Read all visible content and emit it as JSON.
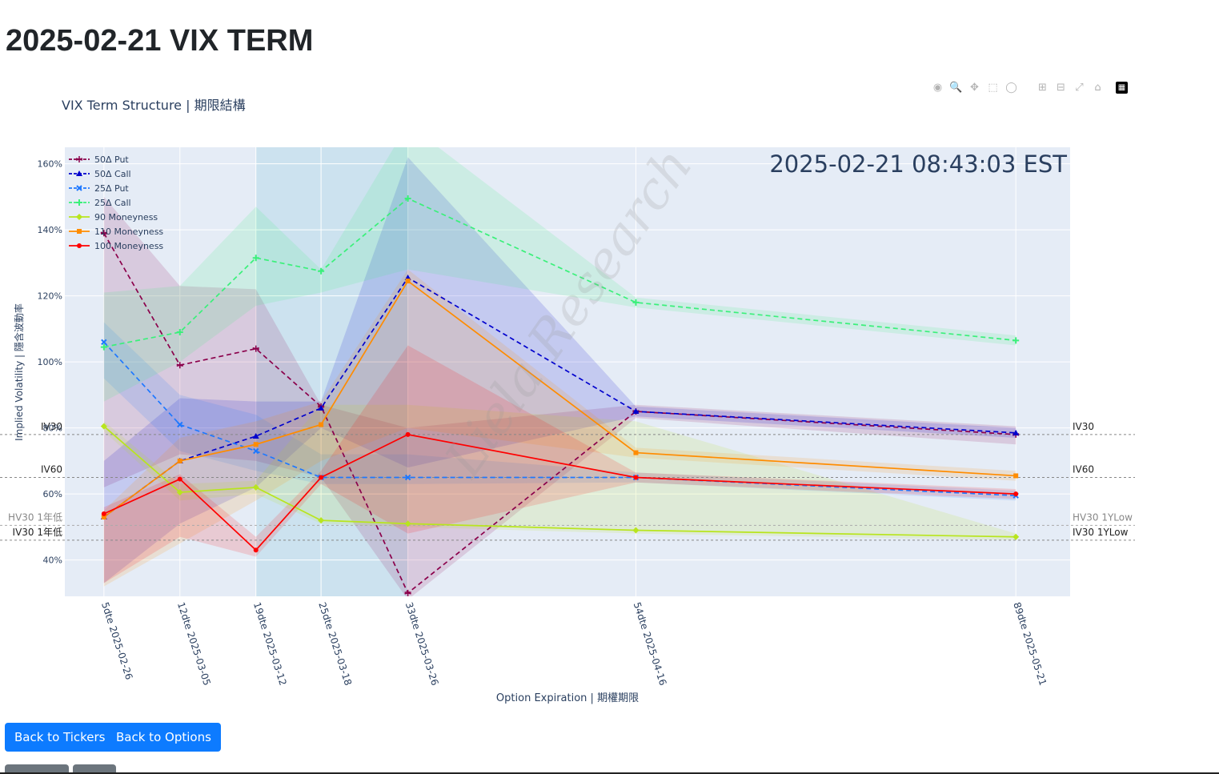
{
  "page": {
    "title": "2025-02-21 VIX TERM",
    "buttons": {
      "back_tickers": "Back to Tickers",
      "back_options": "Back to Options"
    }
  },
  "modebar": {
    "icons": [
      "camera-icon",
      "zoom-icon",
      "pan-icon",
      "box-select-icon",
      "lasso-icon",
      "zoom-in-icon",
      "zoom-out-icon",
      "autoscale-icon",
      "reset-axes-icon",
      "plotly-logo-icon"
    ]
  },
  "chart_data": {
    "type": "line",
    "title": "VIX Term Structure | 期限結構",
    "timestamp": "2025-02-21 08:43:03 EST",
    "xlabel": "Option Expiration | 期權期限",
    "ylabel": "Implied Volatility | 隱含波動率",
    "watermark": "Liela Research",
    "x_dte": [
      5,
      12,
      19,
      25,
      33,
      54,
      89
    ],
    "categories": [
      "5dte 2025-02-26",
      "12dte 2025-03-05",
      "19dte 2025-03-12",
      "25dte 2025-03-18",
      "33dte 2025-03-26",
      "54dte 2025-04-16",
      "89dte 2025-05-21"
    ],
    "ylim": [
      29,
      165
    ],
    "yticks": [
      40,
      60,
      80,
      100,
      120,
      140,
      160
    ],
    "ytick_labels": [
      "40%",
      "60%",
      "80%",
      "100%",
      "120%",
      "140%",
      "160%"
    ],
    "legend_position": "top-left",
    "grid": true,
    "series": [
      {
        "name": "50Δ Put",
        "color": "#8b004b",
        "dash": "6,4",
        "marker": "star",
        "values": [
          139,
          99,
          104,
          86.5,
          30,
          85,
          78
        ],
        "band": {
          "upper": [
            150,
            123,
            122,
            87,
            80,
            87,
            80.5
          ],
          "lower": [
            62,
            72,
            70,
            65,
            28,
            83,
            75
          ]
        }
      },
      {
        "name": "50Δ Call",
        "color": "#0000cd",
        "dash": "6,4",
        "marker": "triangle",
        "values": [
          53,
          70,
          77.5,
          86,
          125.5,
          85,
          78.5
        ],
        "band": {
          "upper": [
            70,
            89,
            88,
            88,
            162,
            86.5,
            80
          ],
          "lower": [
            33,
            51,
            62,
            80,
            68,
            83.5,
            77
          ]
        }
      },
      {
        "name": "25Δ Put",
        "color": "#1e78ff",
        "dash": "6,4",
        "marker": "x",
        "values": [
          106,
          81,
          73,
          65,
          65,
          65,
          59.5
        ],
        "band": {
          "upper": [
            112,
            90,
            84,
            72,
            72,
            66.5,
            61
          ],
          "lower": [
            95,
            73,
            67,
            63,
            63,
            63.5,
            58
          ]
        }
      },
      {
        "name": "25Δ Call",
        "color": "#3af07a",
        "dash": "6,4",
        "marker": "cross",
        "values": [
          104.5,
          109,
          131.5,
          127.5,
          149.5,
          118,
          106.5
        ],
        "band": {
          "upper": [
            121,
            123,
            147,
            128,
            172,
            119.5,
            108
          ],
          "lower": [
            88,
            100,
            117,
            121,
            128,
            116.5,
            105
          ]
        }
      },
      {
        "name": "90 Moneyness",
        "color": "#b8e51e",
        "dash": "",
        "marker": "diamond",
        "values": [
          80.5,
          60.5,
          62,
          52,
          51,
          49,
          47
        ],
        "band": {
          "upper": [
            82,
            63,
            64,
            87,
            87,
            82,
            48
          ],
          "lower": [
            79,
            58,
            60,
            51,
            50,
            48,
            46
          ]
        }
      },
      {
        "name": "110 Moneyness",
        "color": "#ff8c00",
        "dash": "",
        "marker": "square",
        "values": [
          53,
          70,
          75,
          81,
          124.5,
          72.5,
          65.5
        ],
        "band": {
          "upper": [
            55,
            77,
            82,
            88,
            128,
            74,
            67
          ],
          "lower": [
            32,
            45,
            58,
            70,
            80,
            71,
            64
          ]
        }
      },
      {
        "name": "100 Moneyness",
        "color": "#ff0000",
        "dash": "",
        "marker": "circle",
        "values": [
          54,
          64.5,
          43,
          65,
          78,
          65,
          60
        ],
        "band": {
          "upper": [
            56,
            66,
            47,
            67,
            105,
            66.5,
            61.5
          ],
          "lower": [
            33,
            47,
            41,
            63,
            48,
            63.5,
            58.5
          ]
        }
      }
    ],
    "reference_lines": [
      {
        "name": "IV30",
        "value": 78,
        "left_label": "IV30",
        "right_label": "IV30",
        "color": "#888888"
      },
      {
        "name": "IV60",
        "value": 65,
        "left_label": "IV60",
        "right_label": "IV60",
        "color": "#888888"
      },
      {
        "name": "HV30 1YLow",
        "value": 50.5,
        "left_label": "HV30 1年低",
        "right_label": "HV30 1YLow",
        "color": "#aaaaaa"
      },
      {
        "name": "IV30 1YLow",
        "value": 46,
        "left_label": "IV30 1年低",
        "right_label": "IV30 1YLow",
        "color": "#888888"
      }
    ],
    "highlight_range_dte": [
      19,
      33
    ],
    "colors": {
      "plot_bg": "#e5ecf6",
      "highlight": "#add8e6",
      "grid": "#ffffff",
      "text": "#2a3f5f"
    }
  }
}
